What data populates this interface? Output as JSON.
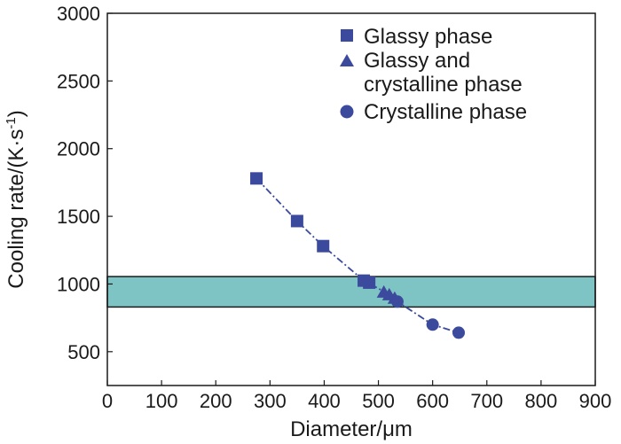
{
  "chart_data": {
    "type": "scatter",
    "xlabel": "Diameter/μm",
    "ylabel": "Cooling rate/(K·s",
    "ylabel_sup": "-1",
    "ylabel_end": ")",
    "xlim": [
      0,
      900
    ],
    "ylim": [
      250,
      3000
    ],
    "xticks": [
      0,
      100,
      200,
      300,
      400,
      500,
      600,
      700,
      800,
      900
    ],
    "yticks": [
      500,
      1000,
      1500,
      2000,
      2500,
      3000
    ],
    "grid": false,
    "legend_position": "top-right",
    "band": {
      "y_from": 830,
      "y_to": 1055,
      "color": "#7fc4c4"
    },
    "marker_color": "#3b4a9c",
    "series": [
      {
        "name": "Glassy phase",
        "marker": "square",
        "points": [
          [
            275,
            1780
          ],
          [
            350,
            1465
          ],
          [
            398,
            1280
          ],
          [
            473,
            1025
          ],
          [
            483,
            1010
          ]
        ]
      },
      {
        "name": "Glassy and crystalline phase",
        "legend_lines": [
          "Glassy and",
          "crystalline phase"
        ],
        "marker": "triangle",
        "points": [
          [
            510,
            945
          ],
          [
            520,
            925
          ],
          [
            530,
            900
          ]
        ]
      },
      {
        "name": "Crystalline phase",
        "marker": "circle",
        "points": [
          [
            535,
            870
          ],
          [
            600,
            700
          ],
          [
            648,
            640
          ]
        ]
      }
    ],
    "fit_line": [
      [
        275,
        1780
      ],
      [
        350,
        1465
      ],
      [
        398,
        1280
      ],
      [
        473,
        1025
      ],
      [
        510,
        945
      ],
      [
        535,
        870
      ],
      [
        600,
        700
      ],
      [
        648,
        640
      ]
    ]
  }
}
